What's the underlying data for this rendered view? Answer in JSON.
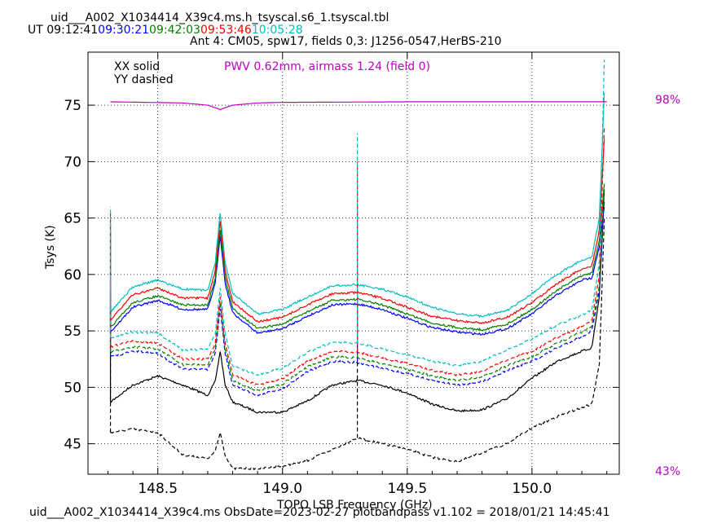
{
  "header": {
    "title": "uid___A002_X1034414_X39c4.ms.h_tsyscal.s6_1.tsyscal.tbl",
    "ut_prefix": "UT",
    "times": [
      {
        "t": "09:12:41",
        "color": "#000000"
      },
      {
        "t": "09:30:21",
        "color": "#0000ff"
      },
      {
        "t": "09:42:03",
        "color": "#008000"
      },
      {
        "t": "09:53:46",
        "color": "#ff0000"
      },
      {
        "t": "10:05:28",
        "color": "#00bfbf"
      }
    ],
    "antenna_line": "Ant 4: CM05,  spw17,  fields 0,3: J1256-0547,HerBS-210"
  },
  "footer": "uid___A002_X1034414_X39c4.ms  ObsDate=2023-02-27   plotbandpass v1.102 = 2018/01/21 14:45:41",
  "chart_data": {
    "type": "line",
    "xlabel": "TOPO LSB Frequency (GHz)",
    "ylabel": "Tsys (K)",
    "xlim": [
      148.22,
      150.35
    ],
    "ylim": [
      42.3,
      79.7
    ],
    "xticks": [
      148.5,
      149.0,
      149.5,
      150.0
    ],
    "xtick_labels": [
      "148.5",
      "149.0",
      "149.5",
      "150.0"
    ],
    "yticks": [
      45,
      50,
      55,
      60,
      65,
      70,
      75
    ],
    "ytick_labels": [
      "45",
      "50",
      "55",
      "60",
      "65",
      "70",
      "75"
    ],
    "grid": true,
    "legend_text": [
      "XX solid",
      "YY dashed"
    ],
    "annotation": {
      "text": "PWV 0.62mm, airmass 1.24 (field 0)",
      "color": "#c000c0"
    },
    "transmission_axis": {
      "top_label": "98%",
      "bottom_label": "43%",
      "color": "#c000c0"
    },
    "transmission": {
      "x": [
        148.31,
        148.6,
        148.7,
        148.74,
        148.75,
        148.76,
        148.8,
        148.9,
        149.0,
        149.5,
        150.0,
        150.3
      ],
      "y": [
        75.3,
        75.2,
        75.0,
        74.7,
        74.6,
        74.7,
        75.0,
        75.2,
        75.25,
        75.3,
        75.3,
        75.3
      ]
    },
    "x": [
      148.31,
      148.4,
      148.5,
      148.6,
      148.7,
      148.73,
      148.75,
      148.77,
      148.8,
      148.9,
      149.0,
      149.1,
      149.2,
      149.3,
      149.4,
      149.5,
      149.6,
      149.7,
      149.8,
      149.9,
      150.0,
      150.1,
      150.2,
      150.24,
      150.27,
      150.29
    ],
    "series": [
      {
        "color": "#000000",
        "style": "solid",
        "values": [
          48.7,
          50.2,
          51.0,
          50.2,
          49.3,
          50.5,
          53.2,
          50.2,
          48.7,
          47.8,
          47.8,
          48.8,
          50.2,
          50.6,
          50.2,
          49.5,
          48.5,
          47.9,
          48.0,
          49.0,
          50.8,
          52.3,
          53.2,
          53.5,
          58.0,
          67.5
        ]
      },
      {
        "color": "#000000",
        "style": "dashed",
        "values": [
          46.0,
          46.3,
          46.0,
          44.0,
          43.7,
          44.3,
          46.0,
          44.0,
          42.8,
          42.8,
          43.0,
          43.5,
          44.5,
          45.5,
          45.0,
          44.5,
          43.8,
          43.4,
          44.2,
          45.0,
          46.4,
          47.4,
          48.2,
          48.5,
          52.0,
          65.0
        ]
      },
      {
        "color": "#0000ff",
        "style": "solid",
        "values": [
          54.9,
          57.1,
          57.7,
          56.9,
          56.9,
          59.2,
          63.5,
          59.2,
          56.6,
          54.8,
          55.2,
          56.3,
          57.3,
          57.4,
          56.9,
          56.1,
          55.3,
          54.9,
          54.7,
          55.2,
          56.5,
          58.2,
          59.5,
          59.7,
          62.5,
          66.0
        ]
      },
      {
        "color": "#0000ff",
        "style": "dashed",
        "values": [
          52.7,
          53.2,
          53.0,
          51.6,
          51.6,
          53.0,
          57.0,
          53.0,
          50.2,
          49.3,
          49.9,
          51.4,
          52.3,
          52.2,
          51.7,
          51.2,
          50.6,
          50.2,
          50.5,
          51.5,
          52.3,
          53.5,
          54.5,
          55.0,
          58.5,
          66.5
        ]
      },
      {
        "color": "#008000",
        "style": "solid",
        "values": [
          55.3,
          57.5,
          58.1,
          57.3,
          57.3,
          59.7,
          64.0,
          59.7,
          57.0,
          55.2,
          55.6,
          56.7,
          57.7,
          57.8,
          57.3,
          56.5,
          55.7,
          55.3,
          55.1,
          55.6,
          56.9,
          58.6,
          59.9,
          60.1,
          63.0,
          68.0
        ]
      },
      {
        "color": "#008000",
        "style": "dashed",
        "values": [
          53.1,
          53.6,
          53.4,
          52.0,
          52.0,
          53.4,
          57.5,
          53.4,
          50.6,
          49.7,
          50.3,
          51.8,
          52.7,
          52.6,
          52.1,
          51.6,
          51.0,
          50.6,
          50.9,
          51.9,
          52.7,
          53.9,
          54.9,
          55.4,
          59.0,
          68.0
        ]
      },
      {
        "color": "#ff0000",
        "style": "solid",
        "values": [
          56.0,
          58.2,
          58.8,
          57.9,
          57.9,
          60.3,
          64.8,
          60.3,
          57.6,
          55.8,
          56.2,
          57.3,
          58.3,
          58.4,
          57.9,
          57.1,
          56.3,
          55.9,
          55.7,
          56.2,
          57.5,
          59.2,
          60.5,
          60.7,
          64.0,
          72.0
        ]
      },
      {
        "color": "#ff0000",
        "style": "dashed",
        "values": [
          53.6,
          54.1,
          53.9,
          52.5,
          52.5,
          53.9,
          58.0,
          53.9,
          51.1,
          50.2,
          50.8,
          52.3,
          53.2,
          53.1,
          52.6,
          52.1,
          51.5,
          51.1,
          51.4,
          52.4,
          53.2,
          54.4,
          55.4,
          55.9,
          60.0,
          73.0
        ]
      },
      {
        "color": "#00bfbf",
        "style": "solid",
        "values": [
          56.7,
          58.9,
          59.5,
          58.7,
          58.6,
          61.0,
          65.5,
          61.0,
          58.3,
          56.5,
          56.9,
          58.0,
          59.0,
          59.1,
          58.7,
          58.0,
          57.1,
          56.5,
          56.3,
          56.8,
          58.3,
          60.0,
          61.3,
          61.5,
          65.0,
          76.0
        ]
      },
      {
        "color": "#00bfbf",
        "style": "dashed",
        "values": [
          54.4,
          54.9,
          54.8,
          53.3,
          53.4,
          54.7,
          58.8,
          54.7,
          51.9,
          51.1,
          51.7,
          53.1,
          54.0,
          53.9,
          53.4,
          52.9,
          52.3,
          51.9,
          52.3,
          53.3,
          54.3,
          55.5,
          56.4,
          56.9,
          61.0,
          79.0
        ]
      }
    ],
    "spikes": [
      {
        "x": 148.31,
        "top": [
          58.5,
          64.0,
          58.5,
          64.5,
          59.0,
          65.0,
          59.5,
          65.5,
          60.0,
          66.0
        ],
        "base_index": 0
      },
      {
        "x": 149.3,
        "top": [
          50.6,
          58.0,
          57.4,
          66.0,
          57.8,
          68.0,
          58.4,
          70.0,
          59.1,
          72.5
        ],
        "base_index": 13
      }
    ]
  }
}
